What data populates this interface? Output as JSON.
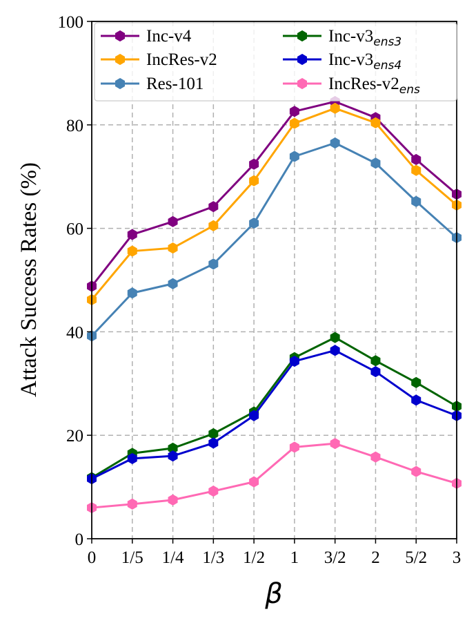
{
  "chart_data": {
    "type": "line",
    "title": "",
    "xlabel": "β",
    "ylabel": "Attack Success Rates (%)",
    "categories": [
      "0",
      "1/5",
      "1/4",
      "1/3",
      "1/2",
      "1",
      "3/2",
      "2",
      "5/2",
      "3"
    ],
    "ylim": [
      0,
      100
    ],
    "yticks": [
      "0",
      "20",
      "40",
      "60",
      "80",
      "100"
    ],
    "grid": true,
    "legend_position": "top",
    "series": [
      {
        "name": "Inc-v4",
        "base": "Inc-v4",
        "sub": "",
        "color": "#800080",
        "values": [
          48.8,
          58.8,
          61.3,
          64.2,
          72.4,
          82.6,
          84.5,
          81.4,
          73.3,
          66.6
        ]
      },
      {
        "name": "IncRes-v2",
        "base": "IncRes-v2",
        "sub": "",
        "color": "#ffa500",
        "values": [
          46.2,
          55.6,
          56.2,
          60.5,
          69.2,
          80.3,
          83.2,
          80.4,
          71.2,
          64.5
        ]
      },
      {
        "name": "Res-101",
        "base": "Res-101",
        "sub": "",
        "color": "#4682b4",
        "values": [
          39.2,
          47.5,
          49.3,
          53.1,
          61.0,
          73.9,
          76.5,
          72.6,
          65.2,
          58.2
        ]
      },
      {
        "name": "Inc-v3ens3",
        "base": "Inc-v3",
        "sub": "ens3",
        "color": "#006400",
        "values": [
          11.8,
          16.5,
          17.5,
          20.3,
          24.5,
          35.0,
          38.9,
          34.4,
          30.2,
          25.6
        ]
      },
      {
        "name": "Inc-v3ens4",
        "base": "Inc-v3",
        "sub": "ens4",
        "color": "#0000cd",
        "values": [
          11.6,
          15.5,
          16.0,
          18.5,
          23.8,
          34.3,
          36.4,
          32.3,
          26.8,
          23.8
        ]
      },
      {
        "name": "IncRes-v2ens",
        "base": "IncRes-v2",
        "sub": "ens",
        "color": "#ff69b4",
        "values": [
          6.0,
          6.7,
          7.5,
          9.2,
          11.0,
          17.7,
          18.4,
          15.8,
          13.0,
          10.7
        ]
      }
    ]
  }
}
